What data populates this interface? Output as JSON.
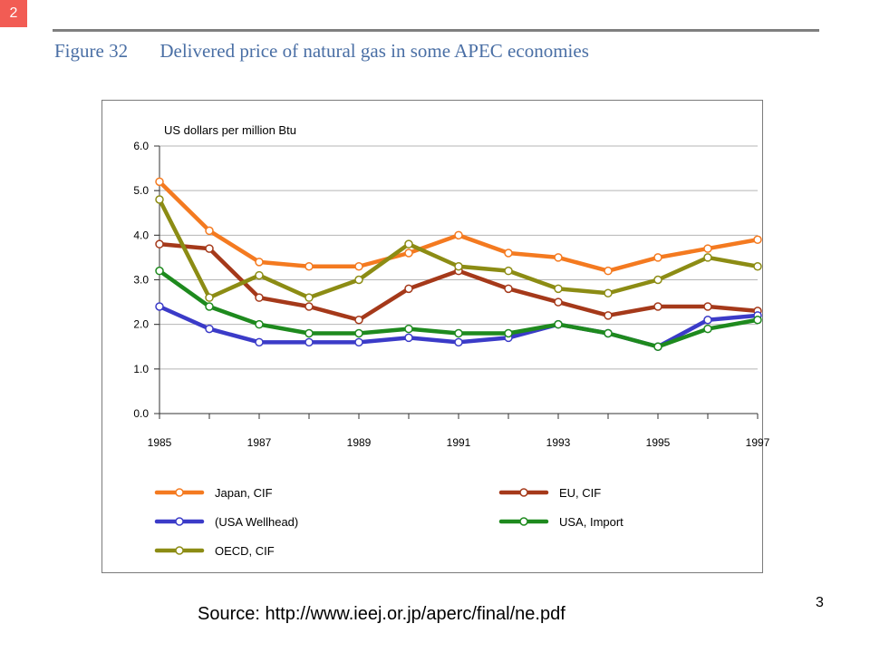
{
  "slide": {
    "badge": "2",
    "figure_number": "Figure 32",
    "figure_title": "Delivered price of natural gas in some APEC economies",
    "source": "Source: http://www.ieej.or.jp/aperc/final/ne.pdf",
    "page_number": "3"
  },
  "colors": {
    "badge_bg": "#f25c54",
    "title_text": "#4a6fa5",
    "gridline": "#b5b5b5",
    "frame": "#7a7a7a"
  },
  "chart_data": {
    "type": "line",
    "ylabel": "US dollars per million Btu",
    "xlabel": "",
    "ylim": [
      0,
      6
    ],
    "xlim": [
      1985,
      1997
    ],
    "y_ticks": [
      "0.0",
      "1.0",
      "2.0",
      "3.0",
      "4.0",
      "5.0",
      "6.0"
    ],
    "x_tick_labels": [
      "1985",
      "1987",
      "1989",
      "1991",
      "1993",
      "1995",
      "1997"
    ],
    "grid": true,
    "legend_position": "below chart",
    "x": [
      1985,
      1986,
      1987,
      1988,
      1989,
      1990,
      1991,
      1992,
      1993,
      1994,
      1995,
      1996,
      1997
    ],
    "series": [
      {
        "name": "Japan, CIF",
        "color": "#f47a20",
        "values": [
          5.2,
          4.1,
          3.4,
          3.3,
          3.3,
          3.6,
          4.0,
          3.6,
          3.5,
          3.2,
          3.5,
          3.7,
          3.9
        ]
      },
      {
        "name": "EU, CIF",
        "color": "#a5391a",
        "values": [
          3.8,
          3.7,
          2.6,
          2.4,
          2.1,
          2.8,
          3.2,
          2.8,
          2.5,
          2.2,
          2.4,
          2.4,
          2.3
        ]
      },
      {
        "name": "(USA Wellhead)",
        "color": "#3b3bc8",
        "values": [
          2.4,
          1.9,
          1.6,
          1.6,
          1.6,
          1.7,
          1.6,
          1.7,
          2.0,
          1.8,
          1.5,
          2.1,
          2.2
        ]
      },
      {
        "name": "USA, Import",
        "color": "#1e8a1e",
        "values": [
          3.2,
          2.4,
          2.0,
          1.8,
          1.8,
          1.9,
          1.8,
          1.8,
          2.0,
          1.8,
          1.5,
          1.9,
          2.1
        ]
      },
      {
        "name": "OECD, CIF",
        "color": "#8c8c14",
        "values": [
          4.8,
          2.6,
          3.1,
          2.6,
          3.0,
          3.8,
          3.3,
          3.2,
          2.8,
          2.7,
          3.0,
          3.5,
          3.3
        ]
      }
    ]
  }
}
